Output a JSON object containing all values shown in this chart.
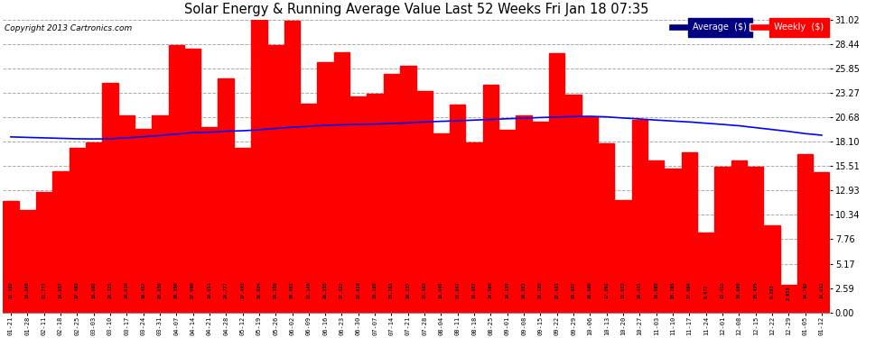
{
  "title": "Solar Energy & Running Average Value Last 52 Weeks Fri Jan 18 07:35",
  "copyright": "Copyright 2013 Cartronics.com",
  "bar_color": "#FF0000",
  "avg_line_color": "#0000FF",
  "background_color": "#FFFFFF",
  "plot_bg_color": "#FFFFFF",
  "grid_color": "#AAAAAA",
  "ylabel_right": [
    "31.02",
    "28.44",
    "25.85",
    "23.27",
    "20.68",
    "18.10",
    "15.51",
    "12.93",
    "10.34",
    "7.76",
    "5.17",
    "2.59",
    "0.00"
  ],
  "ylim": [
    0,
    31.02
  ],
  "categories": [
    "01-21",
    "01-28",
    "02-11",
    "02-18",
    "02-25",
    "03-03",
    "03-10",
    "03-17",
    "03-24",
    "03-31",
    "04-07",
    "04-14",
    "04-21",
    "04-28",
    "05-12",
    "05-19",
    "05-26",
    "06-02",
    "06-09",
    "06-16",
    "06-23",
    "06-30",
    "07-07",
    "07-14",
    "07-21",
    "07-28",
    "08-04",
    "08-11",
    "08-18",
    "08-25",
    "09-01",
    "09-08",
    "09-15",
    "09-22",
    "09-29",
    "10-06",
    "10-13",
    "10-20",
    "10-27",
    "11-03",
    "11-10",
    "11-17",
    "11-24",
    "12-01",
    "12-08",
    "12-15",
    "12-22",
    "12-29",
    "01-05",
    "01-12"
  ],
  "values": [
    11.802,
    10.84,
    12.777,
    14.957,
    17.402,
    18.002,
    24.323,
    20.91,
    19.457,
    20.856,
    28.356,
    27.906,
    19.651,
    24.777,
    17.443,
    31.024,
    28.356,
    30.882,
    22.146,
    26.555,
    27.522,
    22.916,
    23.185,
    25.281,
    26.157,
    23.483,
    18.949,
    22.047,
    18.057,
    24.098,
    19.355,
    20.881,
    20.185,
    27.431,
    23.037,
    20.666,
    17.892,
    11.933,
    20.431,
    16.065,
    15.265,
    17.004,
    8.477,
    15.415,
    16.088,
    15.475,
    9.281,
    2.953,
    16.762,
    14.912
  ],
  "avg_values": [
    18.6,
    18.55,
    18.5,
    18.45,
    18.4,
    18.38,
    18.4,
    18.5,
    18.62,
    18.75,
    18.9,
    19.05,
    19.1,
    19.2,
    19.25,
    19.35,
    19.5,
    19.62,
    19.72,
    19.82,
    19.88,
    19.92,
    19.95,
    20.02,
    20.08,
    20.18,
    20.25,
    20.3,
    20.38,
    20.45,
    20.52,
    20.58,
    20.65,
    20.7,
    20.75,
    20.78,
    20.72,
    20.6,
    20.5,
    20.38,
    20.28,
    20.18,
    20.05,
    19.92,
    19.78,
    19.58,
    19.38,
    19.18,
    18.95,
    18.78
  ],
  "legend_avg_color": "#000080",
  "legend_weekly_color": "#FF0000",
  "legend_avg_label": "Average  ($)",
  "legend_weekly_label": "Weekly  ($)"
}
